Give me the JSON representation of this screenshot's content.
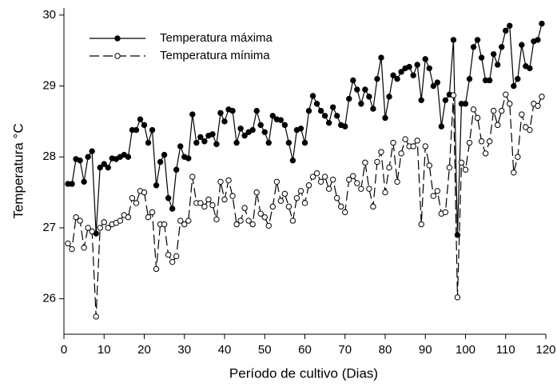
{
  "chart_data": {
    "type": "line",
    "x_label": "Período de cultivo (Dias)",
    "y_label": "Temperatura °C",
    "x": [
      1,
      2,
      3,
      4,
      5,
      6,
      7,
      8,
      9,
      10,
      11,
      12,
      13,
      14,
      15,
      16,
      17,
      18,
      19,
      20,
      21,
      22,
      23,
      24,
      25,
      26,
      27,
      28,
      29,
      30,
      31,
      32,
      33,
      34,
      35,
      36,
      37,
      38,
      39,
      40,
      41,
      42,
      43,
      44,
      45,
      46,
      47,
      48,
      49,
      50,
      51,
      52,
      53,
      54,
      55,
      56,
      57,
      58,
      59,
      60,
      61,
      62,
      63,
      64,
      65,
      66,
      67,
      68,
      69,
      70,
      71,
      72,
      73,
      74,
      75,
      76,
      77,
      78,
      79,
      80,
      81,
      82,
      83,
      84,
      85,
      86,
      87,
      88,
      89,
      90,
      91,
      92,
      93,
      94,
      95,
      96,
      97,
      98,
      99,
      100,
      101,
      102,
      103,
      104,
      105,
      106,
      107,
      108,
      109,
      110,
      111,
      112,
      113,
      114,
      115,
      116,
      117,
      118,
      119
    ],
    "series": [
      {
        "name": "Temperatura máxima",
        "color": "#000000",
        "marker": "filled",
        "dashed": false,
        "values": [
          27.62,
          27.62,
          27.97,
          27.95,
          27.65,
          28.0,
          28.08,
          26.92,
          27.85,
          27.9,
          27.85,
          27.98,
          27.97,
          28.0,
          28.03,
          28.0,
          28.38,
          28.38,
          28.53,
          28.45,
          28.2,
          28.38,
          27.6,
          27.93,
          28.03,
          27.42,
          27.27,
          27.82,
          28.15,
          28.0,
          27.98,
          28.6,
          28.2,
          28.28,
          28.22,
          28.3,
          28.32,
          28.18,
          28.62,
          28.5,
          28.67,
          28.65,
          28.2,
          28.4,
          28.3,
          28.35,
          28.38,
          28.65,
          28.45,
          28.35,
          28.2,
          28.58,
          28.53,
          28.52,
          28.45,
          28.2,
          27.95,
          28.38,
          28.4,
          28.2,
          28.65,
          28.86,
          28.75,
          28.65,
          28.58,
          28.48,
          28.7,
          28.58,
          28.45,
          28.43,
          28.82,
          29.08,
          28.95,
          28.75,
          28.95,
          28.85,
          28.68,
          29.1,
          29.4,
          28.55,
          28.85,
          29.15,
          29.1,
          29.2,
          29.25,
          29.27,
          29.15,
          29.3,
          28.8,
          29.38,
          29.25,
          29.0,
          29.05,
          28.43,
          28.8,
          28.88,
          29.65,
          26.9,
          28.75,
          28.75,
          29.1,
          29.55,
          29.65,
          29.4,
          29.08,
          29.08,
          29.45,
          29.3,
          29.55,
          29.78,
          29.85,
          29.0,
          29.1,
          29.58,
          29.28,
          29.25,
          29.63,
          29.65,
          29.88
        ]
      },
      {
        "name": "Temperatura mínima",
        "color": "#000000",
        "marker": "open",
        "dashed": true,
        "values": [
          26.78,
          26.7,
          27.15,
          27.1,
          26.72,
          27.0,
          26.95,
          25.75,
          27.0,
          27.08,
          27.0,
          27.05,
          27.07,
          27.1,
          27.18,
          27.15,
          27.42,
          27.35,
          27.52,
          27.5,
          27.15,
          27.22,
          26.42,
          27.05,
          27.05,
          26.62,
          26.52,
          26.6,
          27.1,
          27.05,
          27.1,
          27.72,
          27.35,
          27.35,
          27.3,
          27.4,
          27.32,
          27.12,
          27.65,
          27.4,
          27.67,
          27.45,
          27.05,
          27.1,
          27.28,
          27.1,
          27.05,
          27.5,
          27.2,
          27.15,
          27.03,
          27.3,
          27.65,
          27.38,
          27.48,
          27.3,
          27.1,
          27.42,
          27.52,
          27.35,
          27.6,
          27.72,
          27.77,
          27.65,
          27.72,
          27.55,
          27.68,
          27.42,
          27.3,
          27.22,
          27.68,
          27.73,
          27.63,
          27.55,
          27.92,
          27.55,
          27.3,
          27.93,
          28.07,
          27.5,
          27.85,
          28.2,
          27.65,
          28.05,
          28.25,
          28.15,
          28.15,
          28.23,
          27.05,
          28.15,
          27.88,
          27.45,
          27.52,
          27.2,
          27.22,
          27.85,
          28.87,
          26.02,
          27.92,
          27.82,
          28.2,
          28.67,
          28.55,
          28.22,
          28.05,
          28.22,
          28.65,
          28.45,
          28.65,
          28.88,
          28.75,
          27.78,
          28.0,
          28.6,
          28.42,
          28.38,
          28.75,
          28.72,
          28.85
        ]
      }
    ],
    "xlim": [
      0,
      120
    ],
    "xticks": [
      0,
      10,
      20,
      30,
      40,
      50,
      60,
      70,
      80,
      90,
      100,
      110,
      120
    ],
    "ylim": [
      25.5,
      30.1
    ],
    "yticks": [
      26,
      27,
      28,
      29,
      30
    ],
    "legend": "upper left"
  }
}
